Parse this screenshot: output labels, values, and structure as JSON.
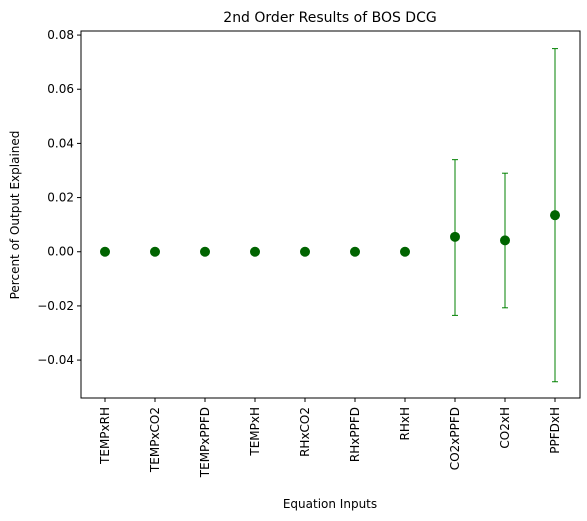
{
  "chart_data": {
    "type": "scatter",
    "title": "2nd Order Results of BOS DCG",
    "xlabel": "Equation Inputs",
    "ylabel": "Percent of Output Explained",
    "ylim": [
      -0.054,
      0.0815
    ],
    "yticks": [
      -0.04,
      -0.02,
      0.0,
      0.02,
      0.04,
      0.06,
      0.08
    ],
    "ytick_labels": [
      "−0.04",
      "−0.02",
      "0.00",
      "0.02",
      "0.04",
      "0.06",
      "0.08"
    ],
    "categories": [
      "TEMPxRH",
      "TEMPxCO2",
      "TEMPxPPFD",
      "TEMPxH",
      "RHxCO2",
      "RHxPPFD",
      "RHxH",
      "CO2xPPFD",
      "CO2xH",
      "PPFDxH"
    ],
    "values": [
      0.0,
      0.0,
      0.0,
      0.0,
      0.0,
      0.0,
      0.0,
      0.0055,
      0.0042,
      0.0135
    ],
    "error_low": [
      0.0,
      0.0,
      0.0,
      0.0,
      0.0,
      0.0,
      0.0,
      -0.0235,
      -0.0207,
      -0.048
    ],
    "error_high": [
      0.0,
      0.0,
      0.0,
      0.0,
      0.0,
      0.0,
      0.0,
      0.034,
      0.029,
      0.075
    ],
    "marker_color": "#006400",
    "errorbar_color": "#008000",
    "grid": false,
    "legend": "none"
  }
}
